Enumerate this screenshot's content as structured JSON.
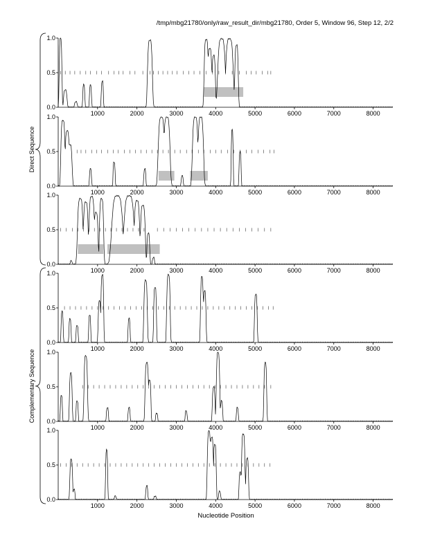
{
  "header": {
    "title": "/tmp/mbg21780/only/raw_result_dir/mbg21780, Order 5, Window 96, Step 12, 2/2"
  },
  "side_labels": {
    "direct": "Direct Sequence",
    "complementary": "Complementary Sequence"
  },
  "colors": {
    "trace": "#000000",
    "ticks": "#555555",
    "band": "#c0c0c0",
    "axis": "#000000"
  },
  "chart_data": [
    {
      "type": "line",
      "group": "direct",
      "xlabel": "",
      "ylabel": "",
      "xlim": [
        0,
        8500
      ],
      "ylim": [
        0,
        1
      ],
      "x_ticks": [
        1000,
        2000,
        3000,
        4000,
        5000,
        6000,
        7000,
        8000
      ],
      "y_ticks": [
        "0.0",
        "0.5",
        "1.0"
      ],
      "peaks": [
        [
          60,
          1.0,
          40
        ],
        [
          180,
          0.25,
          50
        ],
        [
          450,
          0.08,
          40
        ],
        [
          650,
          0.33,
          30
        ],
        [
          820,
          0.32,
          30
        ],
        [
          1120,
          0.38,
          30
        ],
        [
          2330,
          0.97,
          70
        ],
        [
          3760,
          0.98,
          60
        ],
        [
          3850,
          0.85,
          60
        ],
        [
          3950,
          0.75,
          50
        ],
        [
          4150,
          0.99,
          110
        ],
        [
          4350,
          0.99,
          110
        ],
        [
          4530,
          0.9,
          50
        ]
      ],
      "codon_ticks_y": 0.5,
      "codon_ticks": [
        60,
        180,
        300,
        420,
        560,
        700,
        820,
        980,
        1100,
        1280,
        1420,
        1540,
        1650,
        1820,
        1950,
        2150,
        2330,
        2420,
        2540,
        2660,
        2780,
        2900,
        3020,
        3180,
        3320,
        3450,
        3600,
        3760,
        3920,
        4080,
        4250,
        4420,
        4600,
        4780,
        4900,
        5030,
        5180,
        5320,
        5400
      ],
      "bands": [
        [
          3700,
          4700,
          0.22
        ]
      ]
    },
    {
      "type": "line",
      "group": "direct",
      "xlabel": "",
      "ylabel": "",
      "xlim": [
        0,
        8500
      ],
      "ylim": [
        0,
        1
      ],
      "x_ticks": [
        1000,
        2000,
        3000,
        4000,
        5000,
        6000,
        7000,
        8000
      ],
      "y_ticks": [
        "0.0",
        "0.5",
        "1.0"
      ],
      "peaks": [
        [
          120,
          0.95,
          60
        ],
        [
          230,
          0.8,
          60
        ],
        [
          300,
          0.6,
          60
        ],
        [
          820,
          0.25,
          30
        ],
        [
          1420,
          0.35,
          30
        ],
        [
          2200,
          0.25,
          30
        ],
        [
          2620,
          1.0,
          90
        ],
        [
          2760,
          1.0,
          90
        ],
        [
          3150,
          0.15,
          30
        ],
        [
          3480,
          1.0,
          80
        ],
        [
          3620,
          1.0,
          80
        ],
        [
          4420,
          0.82,
          30
        ],
        [
          4620,
          0.5,
          30
        ]
      ],
      "codon_ticks_y": 0.5,
      "codon_ticks": [
        480,
        580,
        700,
        850,
        980,
        1100,
        1260,
        1400,
        1520,
        1680,
        1820,
        1960,
        2100,
        2240,
        2380,
        2520,
        2660,
        2800,
        2960,
        3100,
        3260,
        3400,
        3560,
        3700,
        3860,
        4000,
        4140,
        4300,
        4460,
        4620,
        4780,
        4920,
        5080,
        5220,
        5380,
        5480
      ],
      "bands": [
        [
          2550,
          2950,
          0.15
        ],
        [
          3350,
          3800,
          0.15
        ]
      ]
    },
    {
      "type": "line",
      "group": "direct",
      "xlabel": "",
      "ylabel": "",
      "xlim": [
        0,
        8500
      ],
      "ylim": [
        0,
        1
      ],
      "x_ticks": [
        1000,
        2000,
        3000,
        4000,
        5000,
        6000,
        7000,
        8000
      ],
      "y_ticks": [
        "0.0",
        "0.5",
        "1.0"
      ],
      "peaks": [
        [
          330,
          0.05,
          30
        ],
        [
          560,
          0.95,
          80
        ],
        [
          700,
          0.9,
          70
        ],
        [
          850,
          0.98,
          80
        ],
        [
          960,
          0.75,
          60
        ],
        [
          1100,
          0.95,
          60
        ],
        [
          1500,
          0.99,
          160
        ],
        [
          1800,
          0.99,
          150
        ],
        [
          2000,
          0.92,
          80
        ],
        [
          2150,
          0.85,
          70
        ],
        [
          2290,
          0.45,
          40
        ],
        [
          2420,
          0.1,
          30
        ]
      ],
      "codon_ticks_y": 0.5,
      "codon_ticks": [
        60,
        200,
        360,
        500,
        640,
        780,
        920,
        1060,
        1200,
        1340,
        1480,
        1620,
        1760,
        1900,
        2040,
        2180,
        2520,
        2680,
        2840,
        3000,
        3160,
        3320,
        3480,
        3640,
        3800,
        3960,
        4120,
        4280,
        4440,
        4600,
        4760,
        4920,
        5080,
        5240,
        5400
      ],
      "bands": [
        [
          500,
          1150,
          0.22
        ],
        [
          1250,
          2580,
          0.22
        ]
      ]
    },
    {
      "type": "line",
      "group": "complementary",
      "xlabel": "",
      "ylabel": "",
      "xlim": [
        0,
        8500
      ],
      "ylim": [
        0,
        1
      ],
      "x_ticks": [
        1000,
        2000,
        3000,
        4000,
        5000,
        6000,
        7000,
        8000
      ],
      "y_ticks": [
        "0.0",
        "0.5",
        "1.0"
      ],
      "peaks": [
        [
          100,
          0.45,
          30
        ],
        [
          300,
          0.35,
          30
        ],
        [
          480,
          0.25,
          30
        ],
        [
          800,
          0.4,
          30
        ],
        [
          1050,
          0.6,
          40
        ],
        [
          1120,
          0.98,
          40
        ],
        [
          1800,
          0.35,
          30
        ],
        [
          2220,
          0.9,
          50
        ],
        [
          2460,
          0.8,
          40
        ],
        [
          2800,
          0.98,
          50
        ],
        [
          3650,
          0.95,
          40
        ],
        [
          3720,
          0.75,
          40
        ],
        [
          5020,
          0.7,
          40
        ]
      ],
      "codon_ticks_y": 0.5,
      "codon_ticks": [
        160,
        300,
        440,
        580,
        720,
        860,
        1000,
        1140,
        1280,
        1420,
        1560,
        1700,
        1840,
        1980,
        2120,
        2260,
        2400,
        2540,
        2680,
        2820,
        2960,
        3100,
        3240,
        3380,
        3520,
        3660,
        3800,
        3940,
        4080,
        4220,
        4360,
        4500,
        4640,
        4780,
        4920,
        5060,
        5200,
        5340,
        5460
      ],
      "bands": []
    },
    {
      "type": "line",
      "group": "complementary",
      "xlabel": "",
      "ylabel": "",
      "xlim": [
        0,
        8500
      ],
      "ylim": [
        0,
        1
      ],
      "x_ticks": [
        1000,
        2000,
        3000,
        4000,
        5000,
        6000,
        7000,
        8000
      ],
      "y_ticks": [
        "0.0",
        "0.5",
        "1.0"
      ],
      "peaks": [
        [
          80,
          0.38,
          30
        ],
        [
          320,
          0.7,
          40
        ],
        [
          480,
          0.3,
          30
        ],
        [
          700,
          0.95,
          50
        ],
        [
          1250,
          0.2,
          30
        ],
        [
          1800,
          0.2,
          30
        ],
        [
          2250,
          0.85,
          50
        ],
        [
          2320,
          0.6,
          40
        ],
        [
          2500,
          0.12,
          30
        ],
        [
          3250,
          0.15,
          30
        ],
        [
          3950,
          0.5,
          40
        ],
        [
          4060,
          1.0,
          50
        ],
        [
          4150,
          0.3,
          30
        ],
        [
          4550,
          0.2,
          30
        ],
        [
          5260,
          0.85,
          40
        ]
      ],
      "codon_ticks_y": 0.5,
      "codon_ticks": [
        620,
        760,
        900,
        1040,
        1180,
        1320,
        1460,
        1600,
        1740,
        1880,
        2020,
        2160,
        2300,
        2440,
        2580,
        2720,
        2860,
        3000,
        3140,
        3280,
        3420,
        3560,
        3700,
        3840,
        3980,
        4120,
        4260,
        4400,
        4540,
        4680,
        4820,
        4960,
        5100,
        5240,
        5400
      ],
      "bands": []
    },
    {
      "type": "line",
      "group": "complementary",
      "xlabel": "Nucleotide Position",
      "ylabel": "",
      "xlim": [
        0,
        8500
      ],
      "ylim": [
        0,
        1
      ],
      "x_ticks": [
        1000,
        2000,
        3000,
        4000,
        5000,
        6000,
        7000,
        8000
      ],
      "y_ticks": [
        "0.0",
        "0.5",
        "1.0"
      ],
      "peaks": [
        [
          330,
          0.58,
          40
        ],
        [
          400,
          0.15,
          30
        ],
        [
          1230,
          0.72,
          30
        ],
        [
          1450,
          0.05,
          30
        ],
        [
          2250,
          0.2,
          30
        ],
        [
          2460,
          0.05,
          30
        ],
        [
          3830,
          0.99,
          50
        ],
        [
          3900,
          0.9,
          50
        ],
        [
          3980,
          0.8,
          40
        ],
        [
          4100,
          0.12,
          30
        ],
        [
          4620,
          0.4,
          30
        ],
        [
          4700,
          0.95,
          50
        ],
        [
          4800,
          0.6,
          40
        ]
      ],
      "codon_ticks_y": 0.5,
      "codon_ticks": [
        60,
        200,
        340,
        480,
        620,
        760,
        900,
        1040,
        1180,
        1320,
        1460,
        1600,
        1740,
        1880,
        2020,
        2160,
        2300,
        2440,
        2580,
        2720,
        2860,
        3000,
        3140,
        3280,
        3420,
        3560,
        3700,
        3840,
        3980,
        4120,
        4260,
        4400,
        4540,
        4680,
        4820,
        4960,
        5100,
        5240,
        5380
      ],
      "bands": []
    }
  ]
}
